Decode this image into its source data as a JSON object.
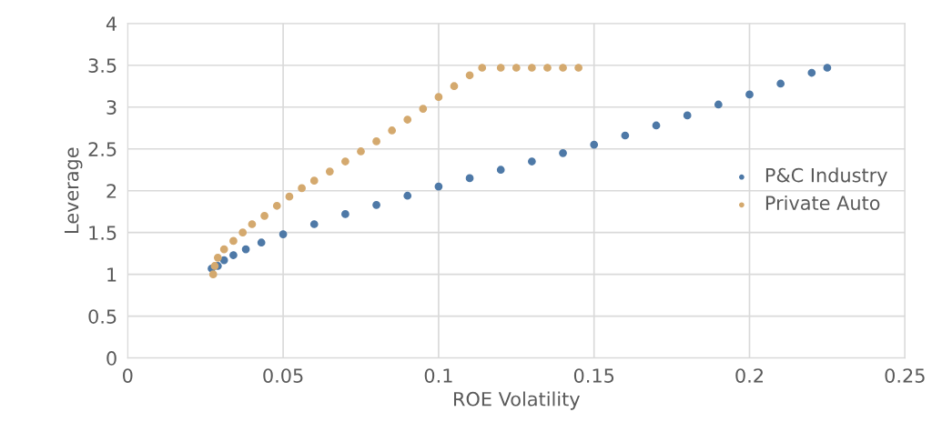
{
  "chart_data": {
    "type": "scatter",
    "xlabel": "ROE Volatility",
    "ylabel": "Leverage",
    "xlim": [
      0,
      0.25
    ],
    "xticks": [
      0,
      0.05,
      0.1,
      0.15,
      0.2,
      0.25
    ],
    "ylim": [
      0,
      4
    ],
    "yticks": [
      0,
      0.5,
      1,
      1.5,
      2,
      2.5,
      3,
      3.5,
      4
    ],
    "grid": true,
    "legend": "right",
    "marker": "circle",
    "series": [
      {
        "name": "P&C Industry",
        "color": "#4e79a7",
        "x": [
          0.027,
          0.029,
          0.031,
          0.034,
          0.038,
          0.043,
          0.05,
          0.06,
          0.07,
          0.08,
          0.09,
          0.1,
          0.11,
          0.12,
          0.13,
          0.14,
          0.15,
          0.16,
          0.17,
          0.18,
          0.19,
          0.2,
          0.21,
          0.22,
          0.225
        ],
        "values": [
          1.07,
          1.1,
          1.17,
          1.23,
          1.3,
          1.38,
          1.48,
          1.6,
          1.72,
          1.83,
          1.94,
          2.05,
          2.15,
          2.25,
          2.35,
          2.45,
          2.55,
          2.66,
          2.78,
          2.9,
          3.03,
          3.15,
          3.28,
          3.41,
          3.47
        ]
      },
      {
        "name": "Private Auto",
        "color": "#d4a96e",
        "x": [
          0.0275,
          0.028,
          0.029,
          0.031,
          0.034,
          0.037,
          0.04,
          0.044,
          0.048,
          0.052,
          0.056,
          0.06,
          0.065,
          0.07,
          0.075,
          0.08,
          0.085,
          0.09,
          0.095,
          0.1,
          0.105,
          0.11,
          0.114,
          0.12,
          0.125,
          0.13,
          0.135,
          0.14,
          0.145
        ],
        "values": [
          1.0,
          1.1,
          1.2,
          1.3,
          1.4,
          1.5,
          1.6,
          1.7,
          1.82,
          1.93,
          2.03,
          2.12,
          2.23,
          2.35,
          2.47,
          2.59,
          2.72,
          2.85,
          2.98,
          3.12,
          3.25,
          3.38,
          3.47,
          3.47,
          3.47,
          3.47,
          3.47,
          3.47,
          3.47
        ]
      }
    ]
  }
}
